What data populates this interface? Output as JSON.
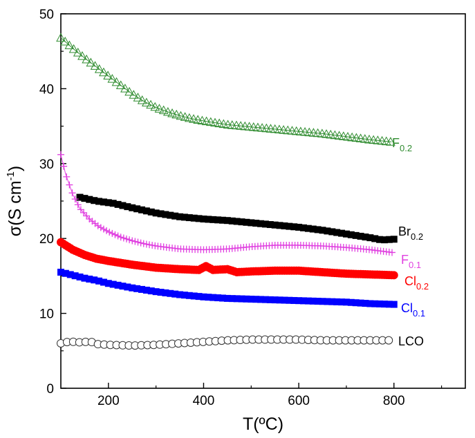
{
  "chart_data": {
    "type": "scatter",
    "xlabel": "T(ºC)",
    "ylabel_main": "σ(S cm",
    "ylabel_sup": "-1",
    "ylabel_close": ")",
    "xlim": [
      100,
      950
    ],
    "ylim": [
      0,
      50
    ],
    "xticks": [
      200,
      400,
      600,
      800
    ],
    "yticks": [
      0,
      10,
      20,
      30,
      40,
      50
    ],
    "grid": false,
    "series": [
      {
        "name": "F0.2",
        "label_main": "F",
        "label_sub": "0.2",
        "color": "#2e8b2e",
        "marker": "triangle-open",
        "x": [
          100,
          125,
          150,
          175,
          200,
          225,
          250,
          275,
          300,
          325,
          350,
          375,
          400,
          450,
          500,
          550,
          600,
          650,
          700,
          750,
          795
        ],
        "y": [
          46.8,
          45.4,
          44.1,
          42.9,
          41.7,
          40.5,
          39.3,
          38.3,
          37.5,
          36.9,
          36.4,
          36.0,
          35.7,
          35.2,
          34.9,
          34.6,
          34.3,
          34.0,
          33.6,
          33.2,
          32.9
        ]
      },
      {
        "name": "Br0.2",
        "label_main": "Br",
        "label_sub": "0.2",
        "color": "#000000",
        "marker": "square-filled",
        "x": [
          140,
          175,
          210,
          250,
          300,
          350,
          400,
          450,
          500,
          550,
          600,
          650,
          700,
          750,
          775,
          800
        ],
        "y": [
          25.5,
          25.0,
          24.7,
          24.1,
          23.4,
          22.9,
          22.6,
          22.4,
          22.1,
          21.8,
          21.5,
          21.1,
          20.6,
          20.1,
          19.8,
          19.9
        ]
      },
      {
        "name": "F0.1",
        "label_main": "F",
        "label_sub": "0.1",
        "color": "#e040e0",
        "marker": "plus",
        "x": [
          100,
          110,
          125,
          140,
          160,
          180,
          200,
          225,
          250,
          275,
          300,
          350,
          400,
          450,
          500,
          550,
          600,
          650,
          700,
          750,
          800
        ],
        "y": [
          31.2,
          28.6,
          25.9,
          24.0,
          22.6,
          21.6,
          20.9,
          20.2,
          19.7,
          19.3,
          19.0,
          18.6,
          18.5,
          18.6,
          18.9,
          19.1,
          19.1,
          19.0,
          18.8,
          18.5,
          18.1
        ]
      },
      {
        "name": "Cl0.2",
        "label_main": "Cl",
        "label_sub": "0.2",
        "color": "#ff0000",
        "marker": "circle-filled",
        "x": [
          100,
          125,
          150,
          175,
          200,
          250,
          300,
          350,
          390,
          405,
          420,
          450,
          470,
          500,
          550,
          600,
          650,
          700,
          750,
          800
        ],
        "y": [
          19.5,
          18.5,
          17.8,
          17.3,
          17.0,
          16.5,
          16.1,
          15.9,
          15.8,
          16.3,
          15.8,
          15.9,
          15.5,
          15.6,
          15.7,
          15.7,
          15.5,
          15.3,
          15.2,
          15.1
        ]
      },
      {
        "name": "Cl0.1",
        "label_main": "Cl",
        "label_sub": "0.1",
        "color": "#0000ff",
        "marker": "square-filled",
        "x": [
          100,
          125,
          150,
          175,
          200,
          250,
          300,
          350,
          400,
          450,
          500,
          550,
          600,
          650,
          700,
          750,
          800
        ],
        "y": [
          15.5,
          15.1,
          14.7,
          14.4,
          14.0,
          13.4,
          12.9,
          12.5,
          12.2,
          12.0,
          11.9,
          11.8,
          11.7,
          11.6,
          11.5,
          11.3,
          11.2
        ]
      },
      {
        "name": "LCO",
        "label_main": "LCO",
        "label_sub": "",
        "color": "#333333",
        "marker": "circle-open",
        "x": [
          100,
          115,
          130,
          145,
          160,
          175,
          200,
          250,
          300,
          350,
          400,
          450,
          500,
          550,
          600,
          650,
          700,
          750,
          800
        ],
        "y": [
          6.0,
          6.2,
          6.2,
          6.1,
          6.3,
          5.9,
          5.8,
          5.7,
          5.8,
          6.0,
          6.2,
          6.4,
          6.5,
          6.5,
          6.5,
          6.4,
          6.4,
          6.4,
          6.4
        ]
      }
    ]
  }
}
